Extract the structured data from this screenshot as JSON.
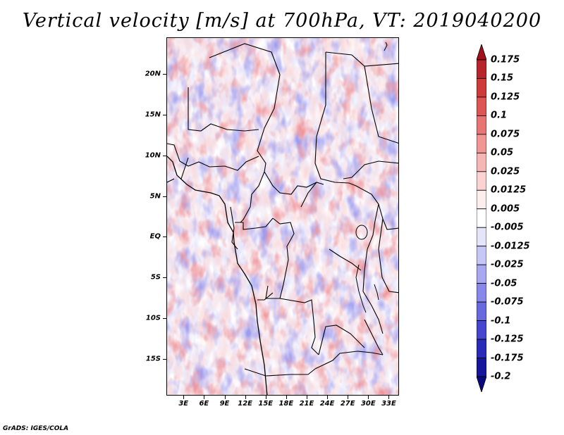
{
  "title": "Vertical velocity [m/s] at 700hPa, VT: 2019040200",
  "credit": "GrADS: IGES/COLA",
  "map": {
    "lat_labels": [
      "20N",
      "15N",
      "10N",
      "5N",
      "EQ",
      "5S",
      "10S",
      "15S"
    ],
    "lon_labels": [
      "3E",
      "6E",
      "9E",
      "12E",
      "15E",
      "18E",
      "21E",
      "24E",
      "27E",
      "30E",
      "33E"
    ],
    "lat_values": [
      20,
      15,
      10,
      5,
      0,
      -5,
      -10,
      -15
    ],
    "lon_values": [
      3,
      6,
      9,
      12,
      15,
      18,
      21,
      24,
      27,
      30,
      33
    ],
    "lat_range": [
      -19.5,
      24.5
    ],
    "lon_range": [
      0.5,
      34.5
    ],
    "field": "vertical velocity",
    "units": "m/s",
    "level": "700hPa",
    "valid_time": "2019040200"
  },
  "colorbar": {
    "levels": [
      "0.175",
      "0.15",
      "0.125",
      "0.1",
      "0.075",
      "0.05",
      "0.025",
      "0.0125",
      "0.005",
      "-0.005",
      "-0.0125",
      "-0.025",
      "-0.05",
      "-0.075",
      "-0.1",
      "-0.125",
      "-0.175",
      "-0.2"
    ],
    "colors": [
      "#a0111a",
      "#b8242b",
      "#cf3a3a",
      "#dd5555",
      "#e87474",
      "#f19595",
      "#f7b6b6",
      "#fbd3d3",
      "#fdeeee",
      "#ffffff",
      "#e4e4fb",
      "#c7c7f6",
      "#a8a8f0",
      "#8888ea",
      "#6868e0",
      "#4646cf",
      "#2a2ab8",
      "#16169c",
      "#0a0a80"
    ]
  }
}
